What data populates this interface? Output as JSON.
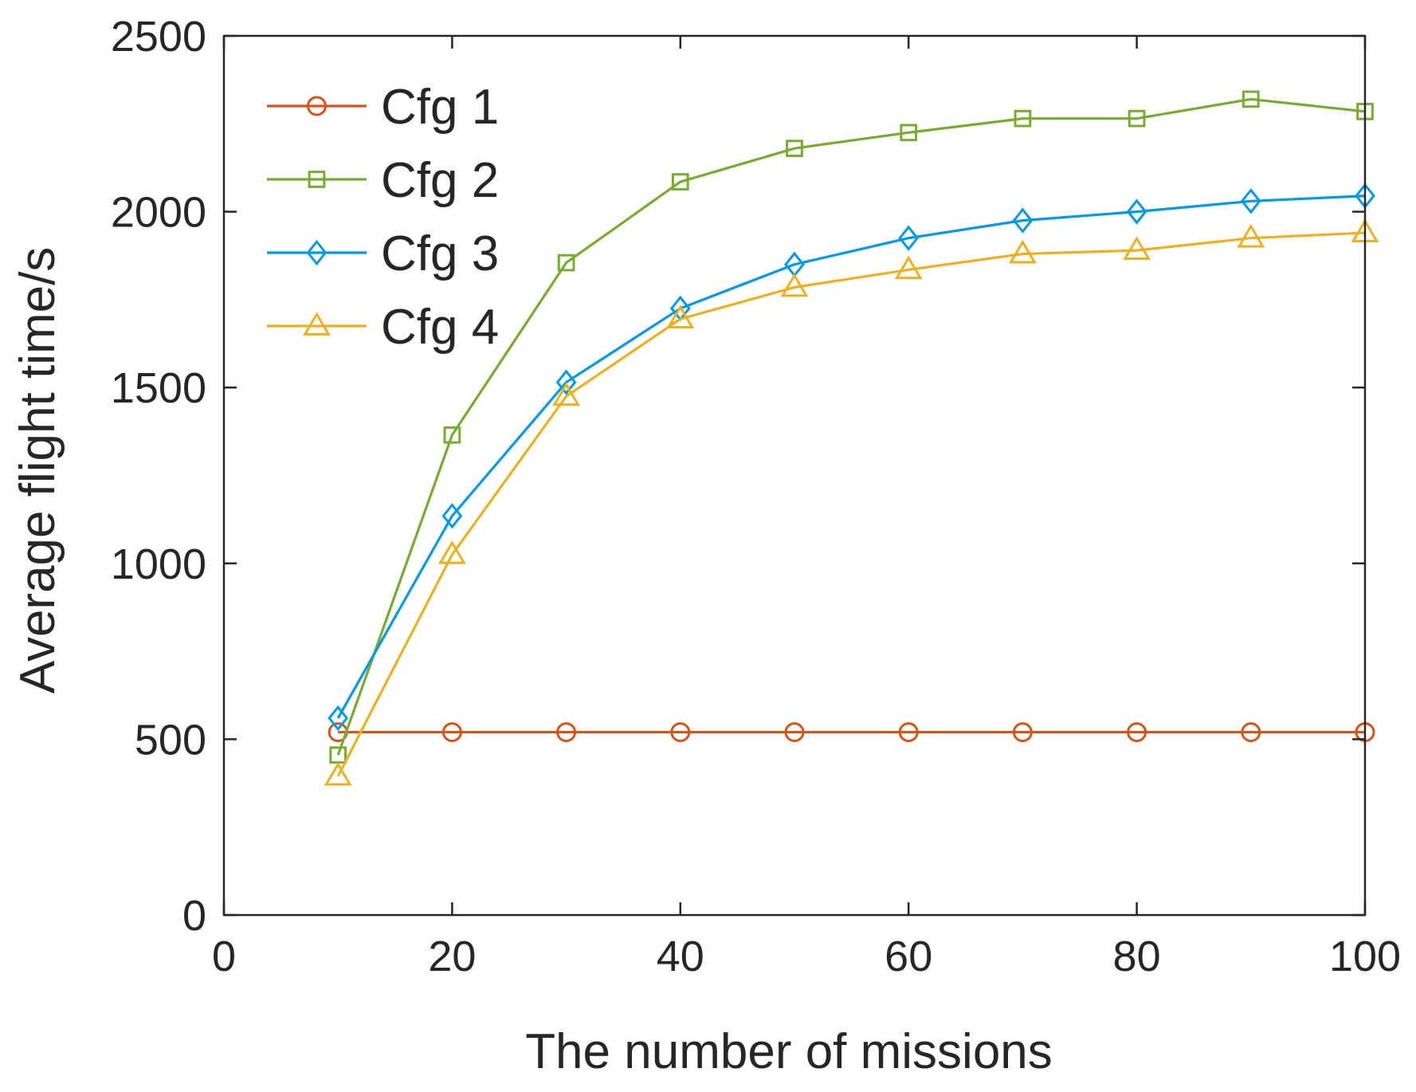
{
  "chart_data": {
    "type": "line",
    "title": "",
    "xlabel": "The number of missions",
    "ylabel": "Average flight time/s",
    "xlim": [
      0,
      100
    ],
    "ylim": [
      0,
      2500
    ],
    "xticks": [
      0,
      20,
      40,
      60,
      80,
      100
    ],
    "yticks": [
      0,
      500,
      1000,
      1500,
      2000,
      2500
    ],
    "xtick_labels": [
      "0",
      "20",
      "40",
      "60",
      "80",
      "100"
    ],
    "ytick_labels": [
      "0",
      "500",
      "1000",
      "1500",
      "2000",
      "2500"
    ],
    "grid": false,
    "legend_position": "top-left",
    "x": [
      10,
      20,
      30,
      40,
      50,
      60,
      70,
      80,
      90,
      100
    ],
    "series": [
      {
        "name": "Cfg 1",
        "color": "#D95319",
        "marker": "circle",
        "values": [
          520,
          520,
          520,
          520,
          520,
          520,
          520,
          520,
          520,
          520
        ]
      },
      {
        "name": "Cfg 2",
        "color": "#77AC30",
        "marker": "square",
        "values": [
          455,
          1365,
          1855,
          2085,
          2180,
          2225,
          2265,
          2265,
          2320,
          2285
        ]
      },
      {
        "name": "Cfg 3",
        "color": "#0099E6",
        "marker": "diamond",
        "values": [
          560,
          1135,
          1515,
          1725,
          1850,
          1925,
          1975,
          2000,
          2030,
          2045
        ]
      },
      {
        "name": "Cfg 4",
        "color": "#EDB120",
        "marker": "triangle",
        "values": [
          395,
          1025,
          1475,
          1695,
          1785,
          1835,
          1880,
          1890,
          1925,
          1940
        ]
      }
    ]
  }
}
